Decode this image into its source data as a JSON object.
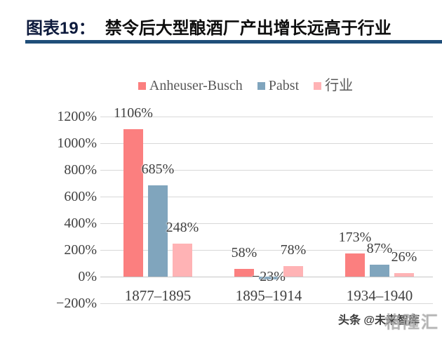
{
  "header": {
    "figure_label": "图表19：",
    "figure_title": "禁令后大型酿酒厂产出增长远高于行业"
  },
  "chart_data": {
    "type": "bar",
    "title": "禁令后大型酿酒厂产出增长远高于行业",
    "categories": [
      "1877–1895",
      "1895–1914",
      "1934–1940"
    ],
    "series": [
      {
        "name": "Anheuser-Busch",
        "color": "#FB7F7F",
        "values": [
          1106,
          58,
          173
        ],
        "labels": [
          "1106%",
          "58%",
          "173%"
        ]
      },
      {
        "name": "Pabst",
        "color": "#80A5BD",
        "values": [
          685,
          -23,
          87
        ],
        "labels": [
          "685%",
          "−23%",
          "87%"
        ]
      },
      {
        "name": "行业",
        "color": "#FFB3B5",
        "values": [
          248,
          78,
          26
        ],
        "labels": [
          "248%",
          "78%",
          "26%"
        ]
      }
    ],
    "y_tick_values": [
      1200,
      1000,
      800,
      600,
      400,
      200,
      0,
      -200
    ],
    "y_tick_labels": [
      "1200%",
      "1000%",
      "800%",
      "600%",
      "400%",
      "200%",
      "0%",
      "−200%"
    ],
    "ylim": [
      -200,
      1200
    ],
    "grid": true,
    "legend_position": "top"
  },
  "watermark": {
    "text": "头条 @未来智库",
    "overlay": "格隆汇"
  }
}
